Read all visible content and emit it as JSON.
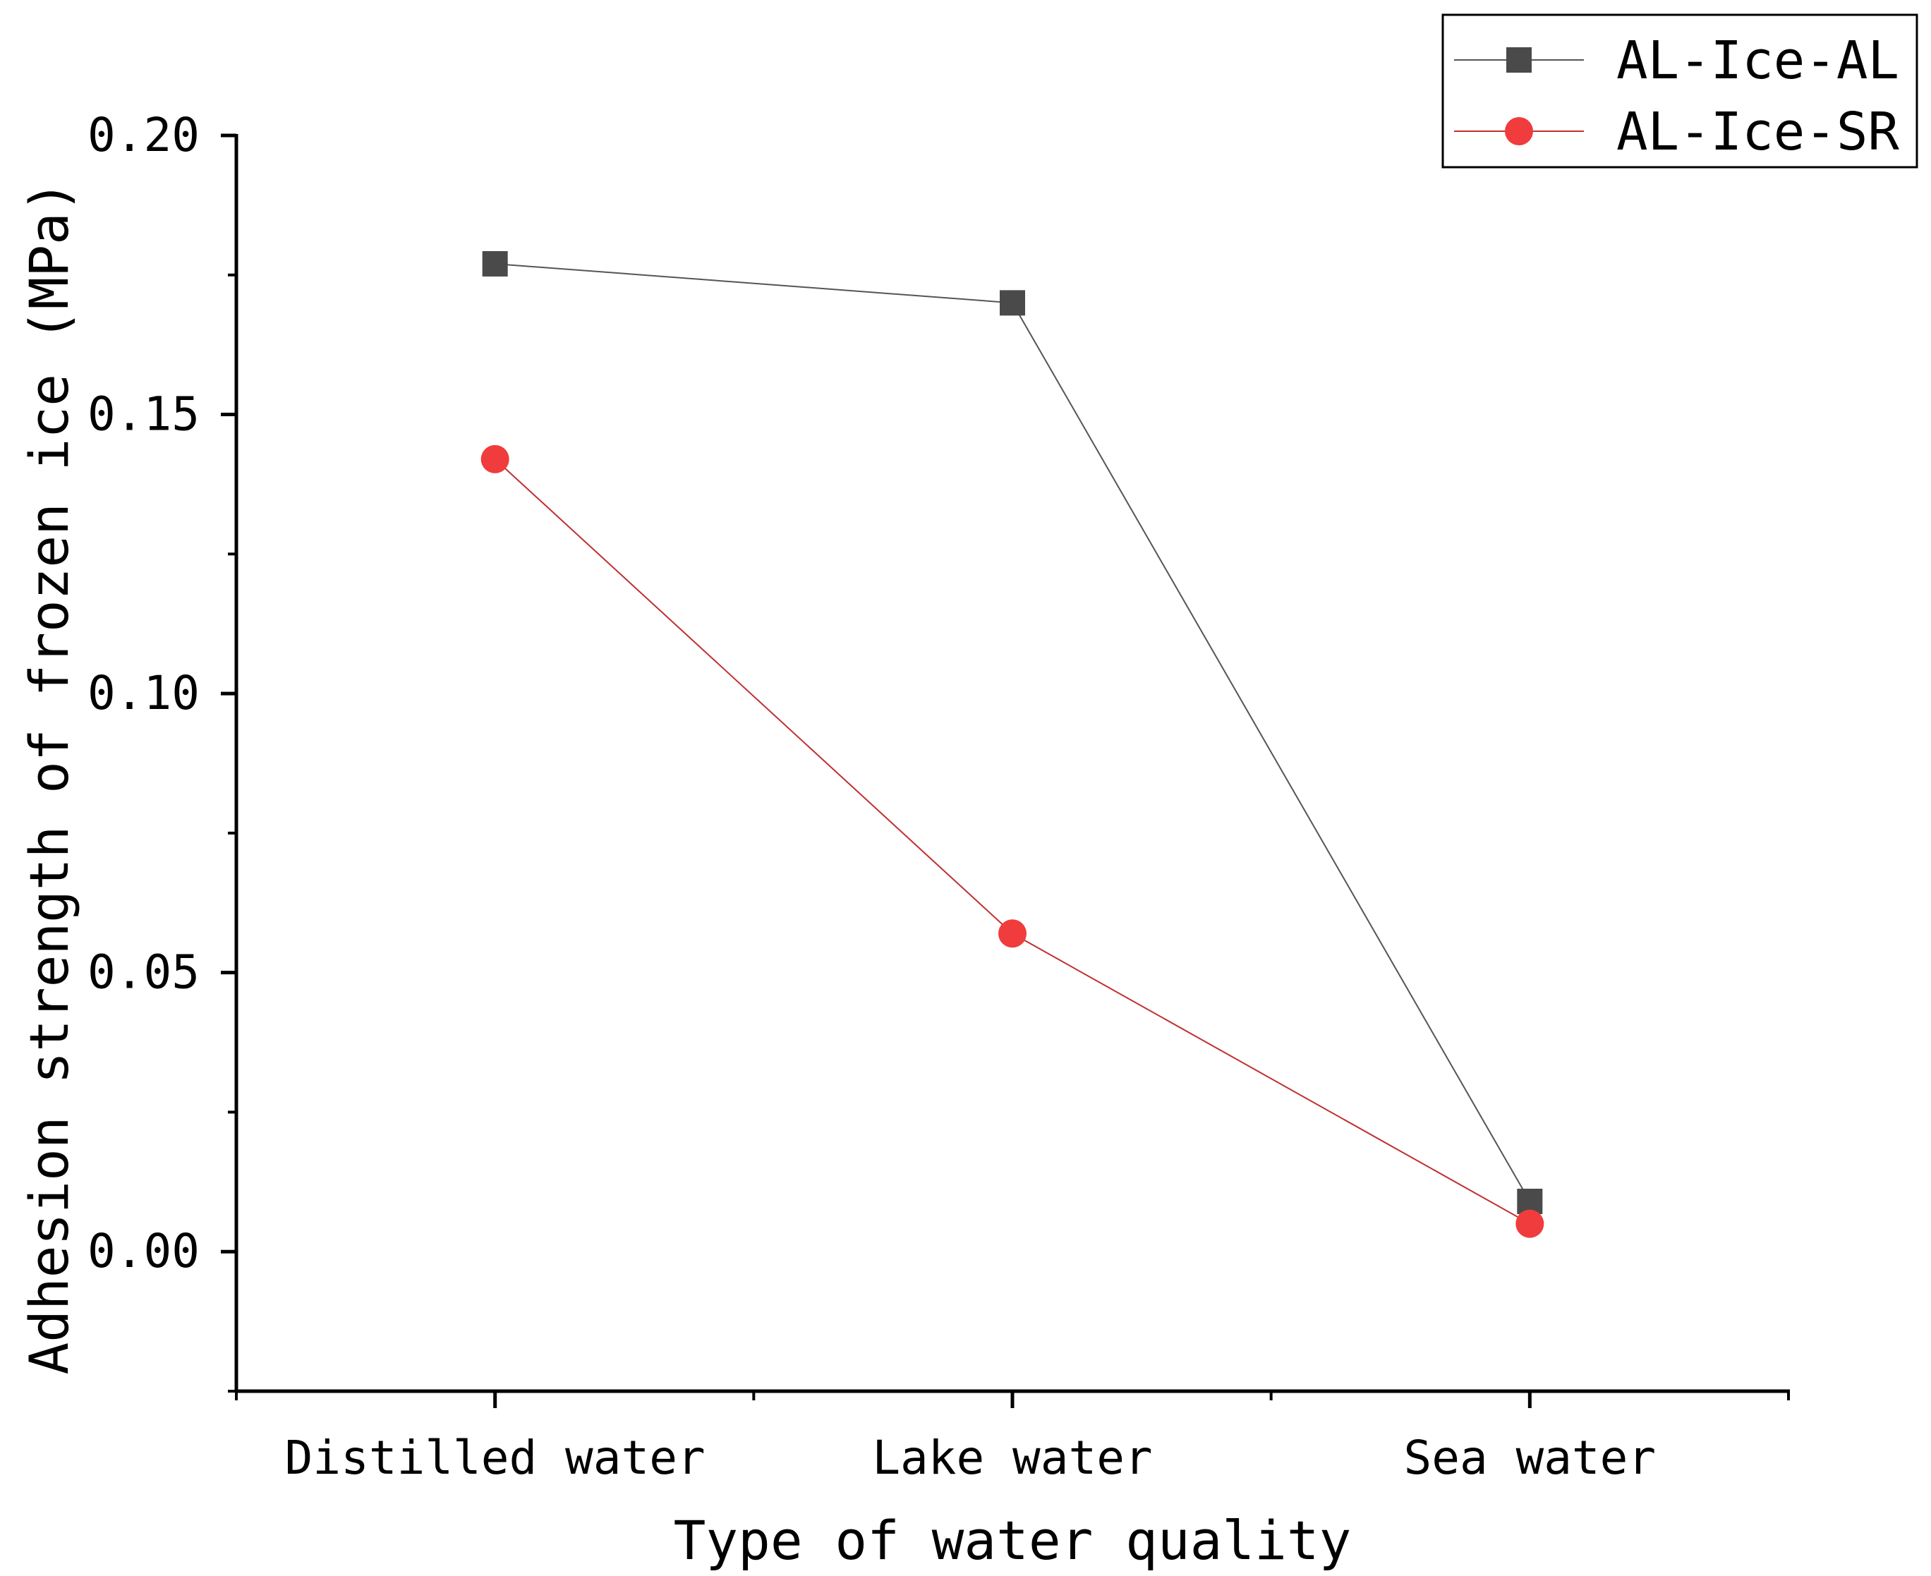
{
  "chart_data": {
    "type": "line",
    "title": "",
    "xlabel": "Type of water quality",
    "ylabel": "Adhesion strength of frozen ice (MPa)",
    "categories": [
      "Distilled water",
      "Lake water",
      "Sea water"
    ],
    "ylim": [
      -0.025,
      0.2
    ],
    "yticks": [
      0.0,
      0.05,
      0.1,
      0.15,
      0.2
    ],
    "ytick_labels": [
      "0.00",
      "0.05",
      "0.10",
      "0.15",
      "0.20"
    ],
    "grid": false,
    "legend_position": "top-right",
    "series": [
      {
        "name": "AL-Ice-AL",
        "marker": "square",
        "color": "#4a4a4a",
        "line_color": "#555555",
        "values": [
          0.177,
          0.17,
          0.009
        ]
      },
      {
        "name": "AL-Ice-SR",
        "marker": "circle",
        "color": "#f03c3c",
        "line_color": "#c03030",
        "values": [
          0.142,
          0.057,
          0.005
        ]
      }
    ]
  }
}
